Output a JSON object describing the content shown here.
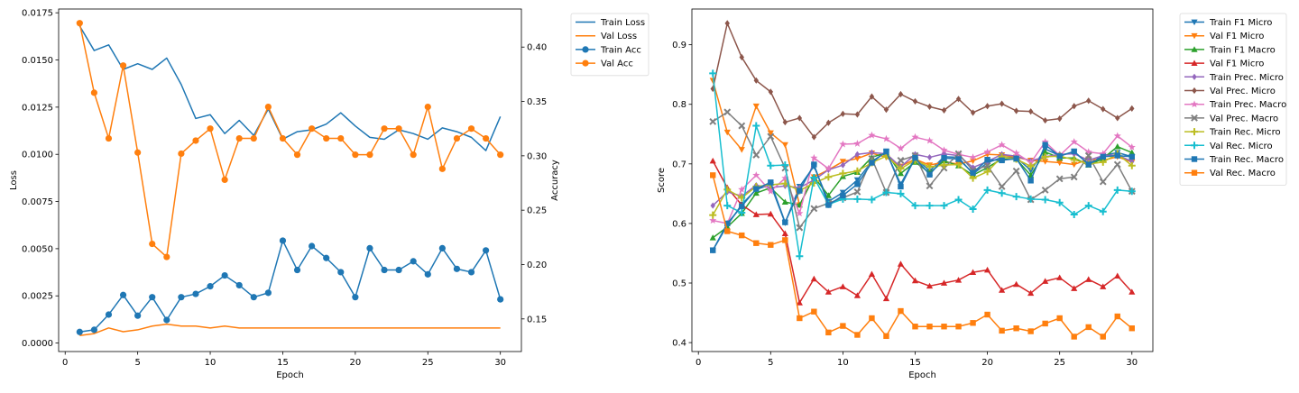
{
  "chart_data": [
    {
      "type": "line",
      "title": "",
      "xlabel": "Epoch",
      "ylabel": "Loss",
      "y2label": "Accuracy",
      "xlim": [
        -0.45,
        31.45
      ],
      "ylim": [
        -0.00045,
        0.0177
      ],
      "y2lim": [
        0.12,
        0.435
      ],
      "xticks": [
        0,
        5,
        10,
        15,
        20,
        25,
        30
      ],
      "yticks": [
        0.0,
        0.0025,
        0.005,
        0.0075,
        0.01,
        0.0125,
        0.015,
        0.0175
      ],
      "y2ticks": [
        0.15,
        0.2,
        0.25,
        0.3,
        0.35,
        0.4
      ],
      "legend_placement": "outside-right-top",
      "x": [
        1,
        2,
        3,
        4,
        5,
        6,
        7,
        8,
        9,
        10,
        11,
        12,
        13,
        14,
        15,
        16,
        17,
        18,
        19,
        20,
        21,
        22,
        23,
        24,
        25,
        26,
        27,
        28,
        29,
        30
      ],
      "series": [
        {
          "name": "Train Loss",
          "axis": "left",
          "color": "#1f77b4",
          "marker": "none",
          "values": [
            0.0168,
            0.0155,
            0.0158,
            0.0145,
            0.0148,
            0.0145,
            0.0151,
            0.0137,
            0.0119,
            0.0121,
            0.0111,
            0.0118,
            0.011,
            0.0124,
            0.0108,
            0.0112,
            0.0113,
            0.0116,
            0.0122,
            0.0115,
            0.0109,
            0.0108,
            0.0113,
            0.0111,
            0.0108,
            0.0114,
            0.0112,
            0.0109,
            0.0102,
            0.012
          ]
        },
        {
          "name": "Val Loss",
          "axis": "left",
          "color": "#ff7f0e",
          "marker": "none",
          "values": [
            0.0004,
            0.0005,
            0.0008,
            0.0006,
            0.0007,
            0.0009,
            0.001,
            0.0009,
            0.0009,
            0.0008,
            0.0009,
            0.0008,
            0.0008,
            0.0008,
            0.0008,
            0.0008,
            0.0008,
            0.0008,
            0.0008,
            0.0008,
            0.0008,
            0.0008,
            0.0008,
            0.0008,
            0.0008,
            0.0008,
            0.0008,
            0.0008,
            0.0008,
            0.0008
          ]
        },
        {
          "name": "Train Acc",
          "axis": "right",
          "color": "#1f77b4",
          "marker": "circle",
          "values": [
            0.138,
            0.14,
            0.154,
            0.172,
            0.153,
            0.17,
            0.149,
            0.17,
            0.173,
            0.18,
            0.19,
            0.181,
            0.17,
            0.174,
            0.222,
            0.195,
            0.217,
            0.206,
            0.193,
            0.17,
            0.215,
            0.195,
            0.195,
            0.203,
            0.191,
            0.215,
            0.196,
            0.193,
            0.213,
            0.168
          ]
        },
        {
          "name": "Val Acc",
          "axis": "right",
          "color": "#ff7f0e",
          "marker": "circle",
          "values": [
            0.422,
            0.358,
            0.316,
            0.383,
            0.303,
            0.219,
            0.207,
            0.302,
            0.314,
            0.325,
            0.278,
            0.316,
            0.316,
            0.345,
            0.316,
            0.301,
            0.325,
            0.316,
            0.316,
            0.301,
            0.301,
            0.325,
            0.325,
            0.301,
            0.345,
            0.288,
            0.316,
            0.325,
            0.316,
            0.301
          ]
        }
      ]
    },
    {
      "type": "line",
      "title": "",
      "xlabel": "Epoch",
      "ylabel": "Score",
      "xlim": [
        -0.45,
        31.45
      ],
      "ylim": [
        0.385,
        0.96
      ],
      "xticks": [
        0,
        5,
        10,
        15,
        20,
        25,
        30
      ],
      "yticks": [
        0.4,
        0.5,
        0.6,
        0.7,
        0.8,
        0.9
      ],
      "legend_placement": "outside-right-top",
      "x": [
        1,
        2,
        3,
        4,
        5,
        6,
        7,
        8,
        9,
        10,
        11,
        12,
        13,
        14,
        15,
        16,
        17,
        18,
        19,
        20,
        21,
        22,
        23,
        24,
        25,
        26,
        27,
        28,
        29,
        30
      ],
      "series": [
        {
          "name": "Train F1 Micro",
          "color": "#1f77b4",
          "marker": "triangle-down",
          "values": [
            0.555,
            0.597,
            0.632,
            0.657,
            0.665,
            0.601,
            0.662,
            0.696,
            0.637,
            0.652,
            0.673,
            0.704,
            0.72,
            0.666,
            0.711,
            0.688,
            0.712,
            0.711,
            0.683,
            0.702,
            0.711,
            0.711,
            0.689,
            0.725,
            0.714,
            0.72,
            0.7,
            0.714,
            0.719,
            0.712
          ]
        },
        {
          "name": "Val F1 Micro",
          "color": "#ff7f0e",
          "marker": "triangle-down",
          "values": [
            0.84,
            0.753,
            0.724,
            0.797,
            0.752,
            0.732,
            0.631,
            0.678,
            0.69,
            0.704,
            0.709,
            0.718,
            0.711,
            0.696,
            0.708,
            0.698,
            0.703,
            0.7,
            0.705,
            0.716,
            0.715,
            0.711,
            0.706,
            0.704,
            0.702,
            0.699,
            0.708,
            0.706,
            0.712,
            0.703
          ]
        },
        {
          "name": "Train F1 Macro",
          "color": "#2ca02c",
          "marker": "triangle-up",
          "values": [
            0.576,
            0.594,
            0.617,
            0.651,
            0.66,
            0.636,
            0.631,
            0.678,
            0.647,
            0.679,
            0.686,
            0.711,
            0.719,
            0.684,
            0.703,
            0.685,
            0.705,
            0.697,
            0.681,
            0.694,
            0.708,
            0.708,
            0.681,
            0.72,
            0.71,
            0.71,
            0.698,
            0.709,
            0.729,
            0.719
          ]
        },
        {
          "name": "Val F1 Micro",
          "color": "#d62728",
          "marker": "triangle-up",
          "values": [
            0.705,
            0.66,
            0.631,
            0.615,
            0.616,
            0.583,
            0.467,
            0.507,
            0.485,
            0.494,
            0.479,
            0.515,
            0.474,
            0.532,
            0.504,
            0.495,
            0.5,
            0.505,
            0.518,
            0.522,
            0.488,
            0.498,
            0.483,
            0.503,
            0.509,
            0.491,
            0.506,
            0.494,
            0.512,
            0.485
          ]
        },
        {
          "name": "Train Prec. Micro",
          "color": "#9467bd",
          "marker": "diamond",
          "values": [
            0.63,
            0.653,
            0.646,
            0.664,
            0.66,
            0.663,
            0.66,
            0.673,
            0.69,
            0.698,
            0.716,
            0.719,
            0.717,
            0.695,
            0.716,
            0.711,
            0.717,
            0.714,
            0.694,
            0.704,
            0.716,
            0.713,
            0.705,
            0.712,
            0.716,
            0.717,
            0.706,
            0.714,
            0.715,
            0.704
          ]
        },
        {
          "name": "Val Prec. Micro",
          "color": "#8c564b",
          "marker": "diamond",
          "values": [
            0.826,
            0.936,
            0.879,
            0.84,
            0.821,
            0.77,
            0.777,
            0.745,
            0.769,
            0.784,
            0.783,
            0.813,
            0.791,
            0.817,
            0.805,
            0.796,
            0.79,
            0.809,
            0.786,
            0.797,
            0.801,
            0.789,
            0.788,
            0.773,
            0.776,
            0.797,
            0.806,
            0.792,
            0.777,
            0.793
          ]
        },
        {
          "name": "Train Prec. Macro",
          "color": "#e377c2",
          "marker": "star",
          "values": [
            0.605,
            0.6,
            0.657,
            0.681,
            0.654,
            0.676,
            0.617,
            0.71,
            0.692,
            0.733,
            0.734,
            0.748,
            0.742,
            0.726,
            0.745,
            0.739,
            0.723,
            0.716,
            0.711,
            0.72,
            0.732,
            0.718,
            0.702,
            0.737,
            0.714,
            0.737,
            0.72,
            0.717,
            0.747,
            0.728
          ]
        },
        {
          "name": "Val Prec. Macro",
          "color": "#7f7f7f",
          "marker": "x",
          "values": [
            0.771,
            0.787,
            0.764,
            0.715,
            0.746,
            0.693,
            0.593,
            0.625,
            0.634,
            0.643,
            0.653,
            0.709,
            0.652,
            0.706,
            0.714,
            0.663,
            0.693,
            0.717,
            0.689,
            0.697,
            0.662,
            0.688,
            0.64,
            0.656,
            0.675,
            0.678,
            0.714,
            0.67,
            0.699,
            0.654
          ]
        },
        {
          "name": "Train Rec. Micro",
          "color": "#bcbd22",
          "marker": "plus",
          "values": [
            0.614,
            0.657,
            0.643,
            0.662,
            0.665,
            0.667,
            0.655,
            0.668,
            0.678,
            0.684,
            0.688,
            0.702,
            0.713,
            0.692,
            0.706,
            0.695,
            0.698,
            0.699,
            0.676,
            0.687,
            0.712,
            0.708,
            0.696,
            0.712,
            0.713,
            0.707,
            0.7,
            0.703,
            0.717,
            0.697
          ]
        },
        {
          "name": "Val Rec. Micro",
          "color": "#17becf",
          "marker": "plus",
          "values": [
            0.852,
            0.63,
            0.618,
            0.764,
            0.697,
            0.698,
            0.545,
            0.677,
            0.632,
            0.641,
            0.641,
            0.64,
            0.652,
            0.65,
            0.63,
            0.63,
            0.63,
            0.64,
            0.624,
            0.656,
            0.651,
            0.645,
            0.641,
            0.64,
            0.635,
            0.615,
            0.63,
            0.62,
            0.656,
            0.654
          ]
        },
        {
          "name": "Train Rec. Macro",
          "color": "#1f77b4",
          "marker": "square",
          "values": [
            0.555,
            0.6,
            0.629,
            0.658,
            0.669,
            0.602,
            0.655,
            0.699,
            0.631,
            0.647,
            0.666,
            0.702,
            0.721,
            0.662,
            0.71,
            0.682,
            0.71,
            0.708,
            0.685,
            0.707,
            0.706,
            0.709,
            0.672,
            0.732,
            0.713,
            0.721,
            0.699,
            0.712,
            0.714,
            0.712
          ]
        },
        {
          "name": "Val Rec. Macro",
          "color": "#ff7f0e",
          "marker": "square",
          "values": [
            0.681,
            0.587,
            0.58,
            0.567,
            0.564,
            0.572,
            0.441,
            0.452,
            0.417,
            0.428,
            0.413,
            0.441,
            0.411,
            0.453,
            0.427,
            0.427,
            0.427,
            0.427,
            0.433,
            0.447,
            0.42,
            0.424,
            0.419,
            0.432,
            0.441,
            0.41,
            0.426,
            0.41,
            0.444,
            0.424
          ]
        }
      ]
    }
  ]
}
